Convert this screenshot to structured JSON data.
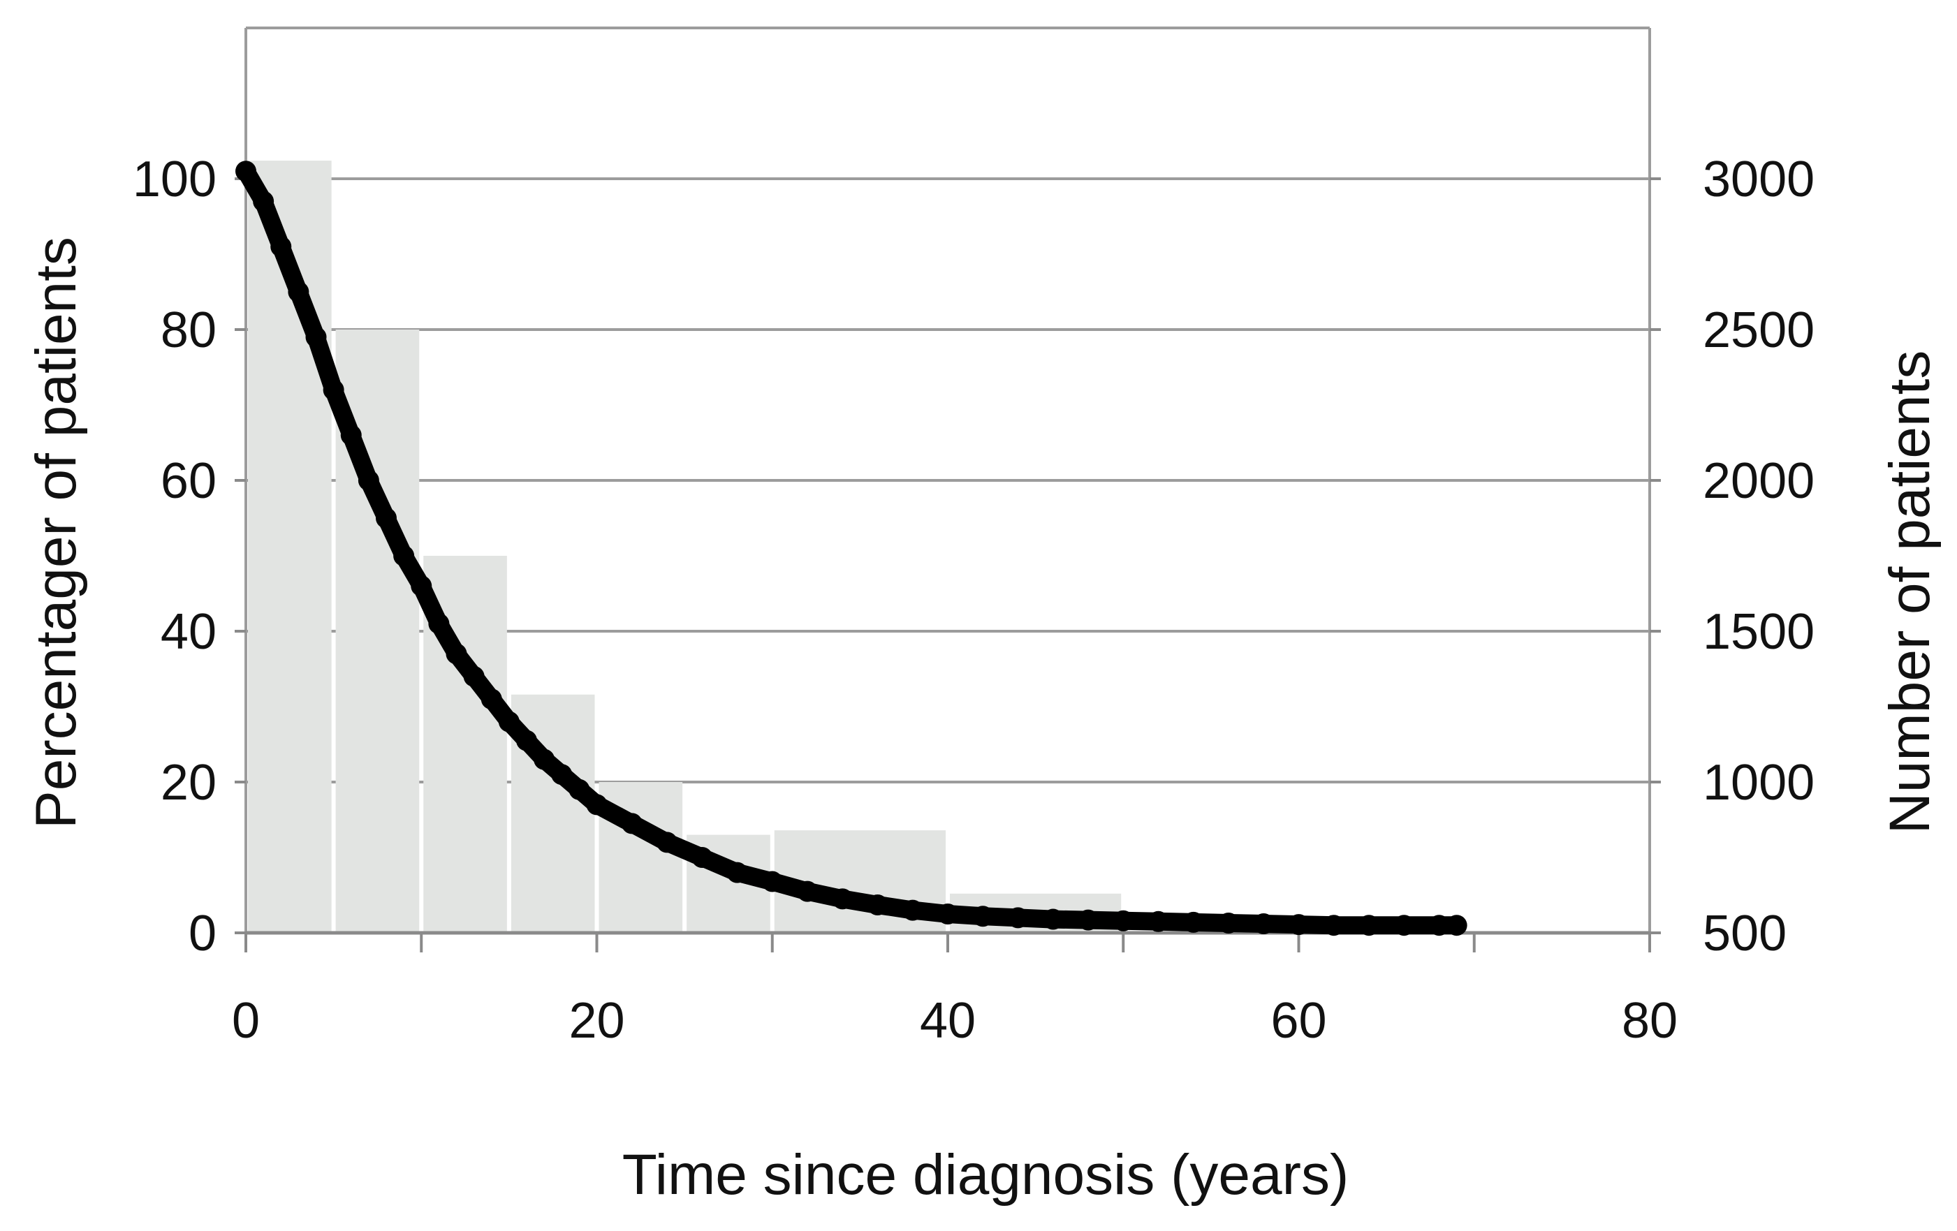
{
  "chart_data": {
    "type": "bar+line",
    "xlabel": "Time since diagnosis (years)",
    "ylabel_left": "Percentager of patients",
    "ylabel_right": "Number of patients",
    "xlim": [
      0,
      80
    ],
    "ylim_left": [
      0,
      120
    ],
    "ylim_right": [
      500,
      3500
    ],
    "x_ticks": [
      "0",
      "20",
      "40",
      "60",
      "80"
    ],
    "y_left_ticks": [
      "0",
      "20",
      "40",
      "60",
      "80",
      "100"
    ],
    "y_right_ticks": [
      "500",
      "1000",
      "1500",
      "2000",
      "2500",
      "3000"
    ],
    "grid": "horizontal",
    "bar_color": "#e2e4e2",
    "line_color": "#000000",
    "bars": {
      "name": "Number of patients",
      "axis": "right",
      "bins": [
        {
          "x0": 0,
          "x1": 5,
          "value": 3060
        },
        {
          "x0": 5,
          "x1": 10,
          "value": 2500
        },
        {
          "x0": 10,
          "x1": 15,
          "value": 1750
        },
        {
          "x0": 15,
          "x1": 20,
          "value": 1290
        },
        {
          "x0": 20,
          "x1": 25,
          "value": 1000
        },
        {
          "x0": 25,
          "x1": 30,
          "value": 825
        },
        {
          "x0": 30,
          "x1": 40,
          "value": 840
        },
        {
          "x0": 40,
          "x1": 50,
          "value": 630
        }
      ]
    },
    "line": {
      "name": "Percentage of patients",
      "axis": "left",
      "x": [
        0,
        1,
        2,
        3,
        4,
        5,
        6,
        7,
        8,
        9,
        10,
        11,
        12,
        13,
        14,
        15,
        16,
        17,
        18,
        19,
        20,
        22,
        24,
        26,
        28,
        30,
        32,
        34,
        36,
        38,
        40,
        42,
        44,
        46,
        48,
        50,
        52,
        54,
        56,
        58,
        60,
        62,
        64,
        66,
        68,
        69
      ],
      "y": [
        101,
        97,
        91,
        85,
        79,
        72,
        66,
        60,
        55,
        50,
        46,
        41,
        37,
        34,
        31,
        28,
        25.5,
        23,
        21,
        19,
        17,
        14.5,
        12,
        10,
        8,
        6.8,
        5.5,
        4.5,
        3.7,
        3,
        2.5,
        2.2,
        2,
        1.8,
        1.7,
        1.6,
        1.5,
        1.4,
        1.3,
        1.2,
        1.1,
        1,
        1,
        1,
        1,
        1
      ]
    }
  }
}
